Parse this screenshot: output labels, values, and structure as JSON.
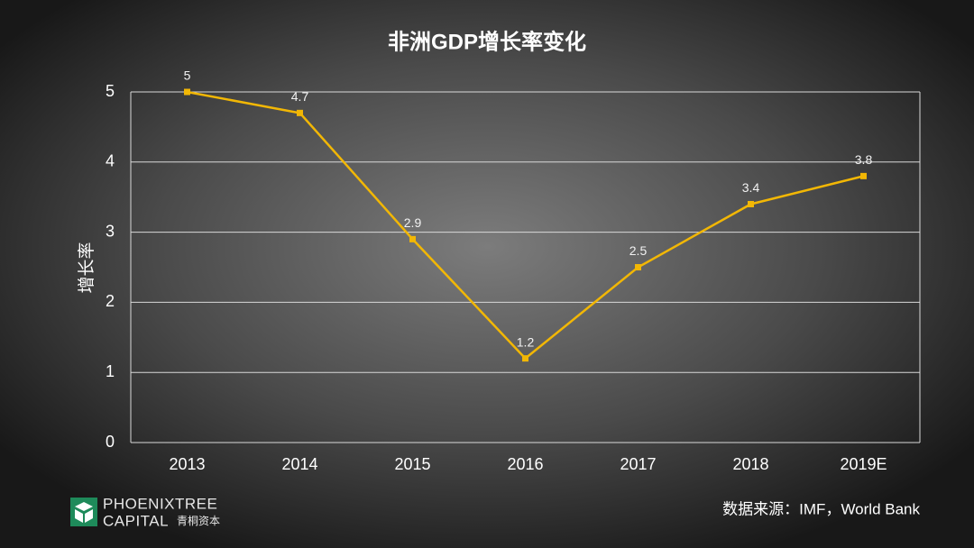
{
  "chart_data": {
    "type": "line",
    "title": "非洲GDP增长率变化",
    "y_label": "增长率",
    "categories": [
      "2013",
      "2014",
      "2015",
      "2016",
      "2017",
      "2018",
      "2019E"
    ],
    "series": [
      {
        "name": "增长率",
        "color": "#f2b705",
        "values": [
          5,
          4.7,
          2.9,
          1.2,
          2.5,
          3.4,
          3.8
        ]
      }
    ],
    "ylim": [
      0,
      5
    ],
    "yticks": [
      0,
      1,
      2,
      3,
      4,
      5
    ],
    "grid": true,
    "source": "数据来源：IMF，World Bank",
    "logo": {
      "line1": "PHOENIXTREE",
      "line2": "CAPITAL",
      "line2_cn": "青桐资本"
    }
  }
}
